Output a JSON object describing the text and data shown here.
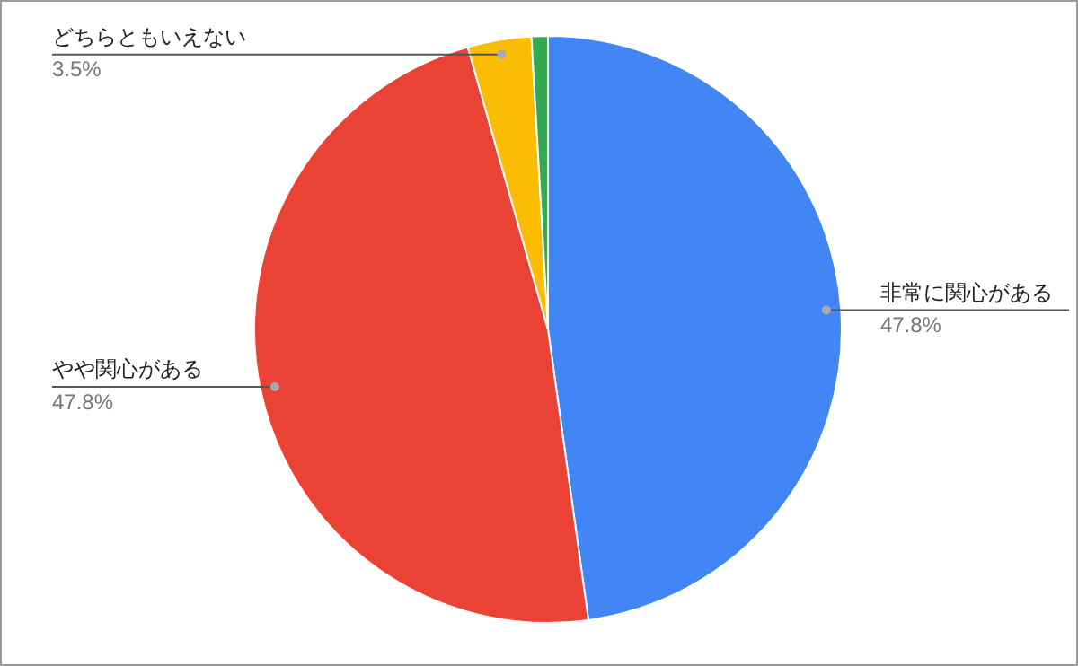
{
  "chart_data": {
    "type": "pie",
    "categories": [
      "非常に関心がある",
      "やや関心がある",
      "どちらともいえない",
      null
    ],
    "values": [
      47.8,
      47.8,
      3.5,
      0.9
    ],
    "colors": [
      "#4285f4",
      "#ea4335",
      "#fbbc04",
      "#34a853"
    ],
    "value_labels": [
      "47.8%",
      "47.8%",
      "3.5%",
      null
    ],
    "legend": false
  }
}
